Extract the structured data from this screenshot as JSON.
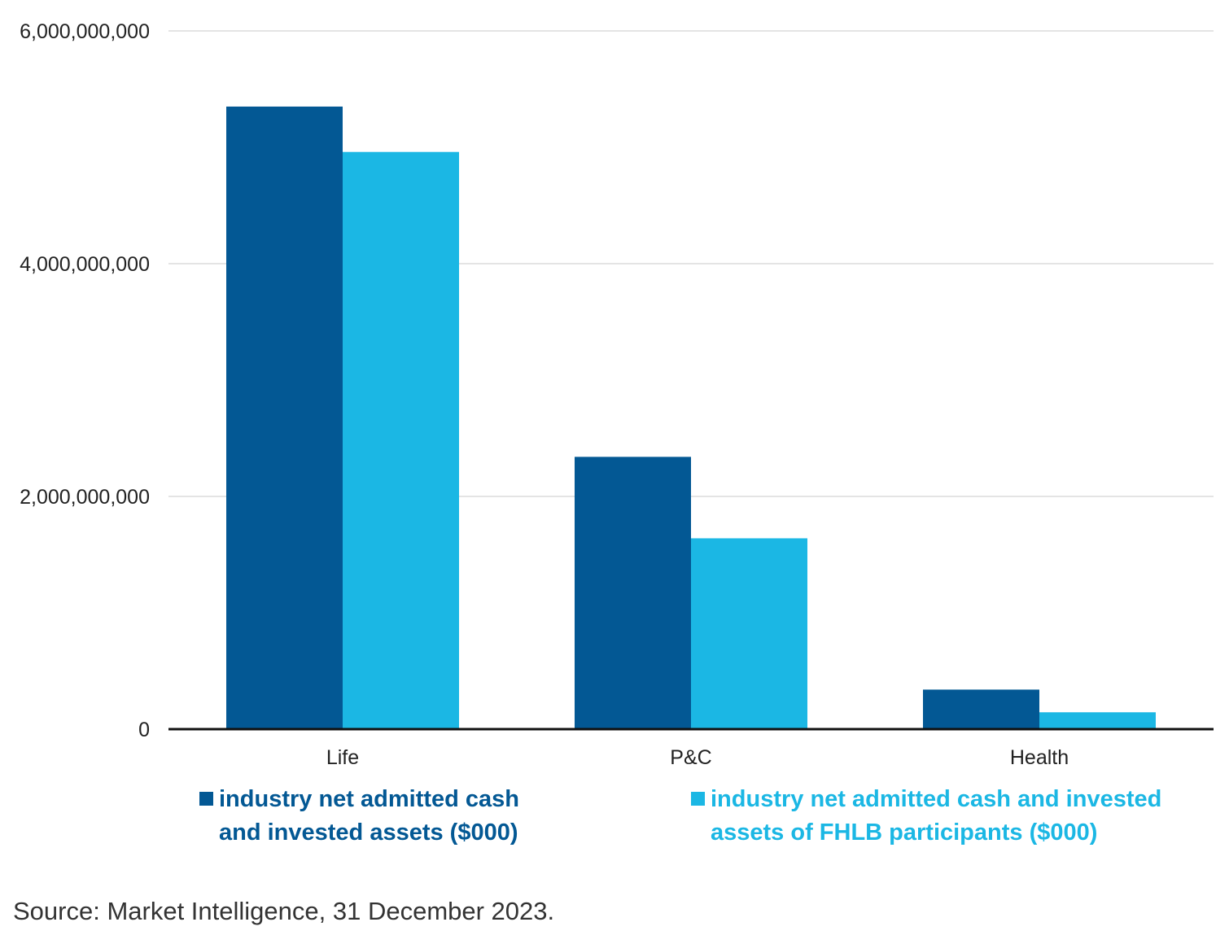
{
  "chart_data": {
    "type": "bar",
    "categories": [
      "Life",
      "P&C",
      "Health"
    ],
    "series": [
      {
        "name": "industry net admitted cash and invested assets ($000)",
        "color": "#035894",
        "values": [
          5350000000,
          2340000000,
          340000000
        ]
      },
      {
        "name": "industry net admitted cash and invested assets of FHLB participants ($000)",
        "color": "#1bb7e4",
        "values": [
          4960000000,
          1640000000,
          145000000
        ]
      }
    ],
    "yticks": [
      "0",
      "2,000,000,000",
      "4,000,000,000",
      "6,000,000,000"
    ],
    "ylim": [
      0,
      6000000000
    ],
    "grid": true,
    "legend_position": "bottom",
    "xlabel": "",
    "ylabel": ""
  },
  "legend": {
    "item1": {
      "line1": "industry net admitted cash",
      "line2": "and invested assets ($000)"
    },
    "item2": {
      "line1": "industry net admitted cash and invested",
      "line2": "assets of FHLB participants ($000)"
    }
  },
  "source": "Source: Market Intelligence, 31 December 2023."
}
